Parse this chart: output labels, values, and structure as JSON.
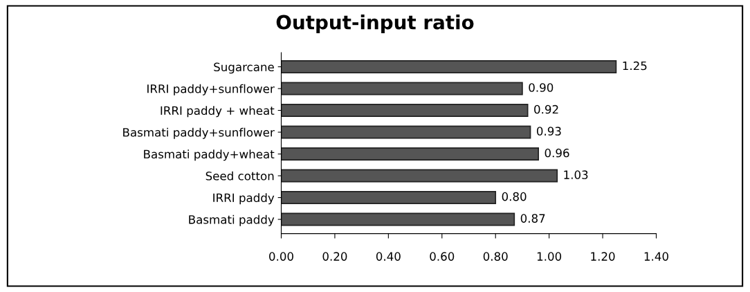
{
  "chart_data": {
    "type": "bar",
    "title": "Output-input ratio",
    "orientation": "horizontal",
    "categories": [
      "Sugarcane",
      "IRRI paddy+sunflower",
      "IRRI paddy + wheat",
      "Basmati paddy+sunflower",
      "Basmati paddy+wheat",
      "Seed cotton",
      "IRRI paddy",
      "Basmati paddy"
    ],
    "values": [
      1.25,
      0.9,
      0.92,
      0.93,
      0.96,
      1.03,
      0.8,
      0.87
    ],
    "value_labels": [
      "1.25",
      "0.90",
      "0.92",
      "0.93",
      "0.96",
      "1.03",
      "0.80",
      "0.87"
    ],
    "color": "#555555",
    "xlim": [
      0,
      1.4
    ],
    "xticks": [
      {
        "value": 0,
        "label": "0.00"
      },
      {
        "value": 0.2,
        "label": "0.20"
      },
      {
        "value": 0.4,
        "label": "0.40"
      },
      {
        "value": 0.6,
        "label": "0.60"
      },
      {
        "value": 0.8,
        "label": "0.80"
      },
      {
        "value": 1.0,
        "label": "1.00"
      },
      {
        "value": 1.2,
        "label": "1.20"
      },
      {
        "value": 1.4,
        "label": "1.40"
      }
    ],
    "grid": false,
    "legend": false
  }
}
